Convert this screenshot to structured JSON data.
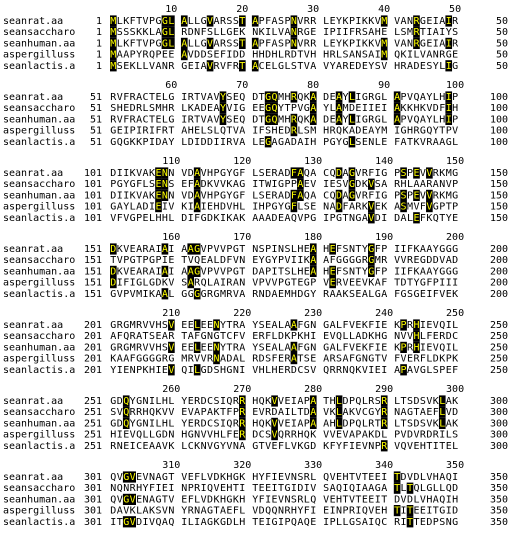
{
  "blocks": [
    {
      "ruler": [
        10,
        20,
        30,
        40,
        50
      ],
      "rows": [
        {
          "name": "seanrat.aa",
          "start": 1,
          "sequence": "MLKFTVPGGL ALLGVARSST APFASPNVRR LEYKPIKKVM VANRGEIAIR",
          "end": 50
        },
        {
          "name": "seansaccharo",
          "start": 1,
          "sequence": "MSSSKKLAGL RDNFSLLGEK NKILVANRGE IPIIFRSAHE LSMRTIAIYS",
          "end": 50
        },
        {
          "name": "seanhuman.aa",
          "start": 1,
          "sequence": "MLKFTVPGGL ALLGVARSST APFASPNVRR LEYKPIKKVM VANRGEIAIR",
          "end": 50
        },
        {
          "name": "aspergilluss",
          "start": 1,
          "sequence": "MAAPYRQPEE AVDDSEFIDD HHDHLRDTVH HRLSANSAIM QKILVANRGE",
          "end": 50
        },
        {
          "name": "seanlactis.a",
          "start": 1,
          "sequence": "MSEKLLVANR GEIAVRVFRT ACELGLSTVA VYAREDEYSV HRADESYLIG",
          "end": 50
        }
      ]
    },
    {
      "ruler": [
        60,
        70,
        80,
        90,
        100
      ],
      "rows": [
        {
          "name": "seanrat.aa",
          "start": 51,
          "sequence": "RVFRACTELG IRTVAVYSEQ DTGQMHRQKA DEAYLIGRGL APVQAYLHIP",
          "end": 100
        },
        {
          "name": "seansaccharo",
          "start": 51,
          "sequence": "SHEDRLSMHR LKADEAYVIG EEGQYTPVGA YLAMDEIIEI AKKHKVDFIH",
          "end": 100
        },
        {
          "name": "seanhuman.aa",
          "start": 51,
          "sequence": "RVFRACTELG IRTVAVYSEQ DTGQMHRQKA DEAYLIGRGL APVQAYLHIP",
          "end": 100
        },
        {
          "name": "aspergilluss",
          "start": 51,
          "sequence": "GEIPIRIFRT AHELSLQTVA IFSHEDRLSM HRQKADEAYM IGHRGQYTPV",
          "end": 100
        },
        {
          "name": "seanlactis.a",
          "start": 51,
          "sequence": "GQGKKPIDAY LDIDDIIRVA LEGAGADAIH PGYGLSENLE FATKVRAAGL",
          "end": 100
        }
      ]
    },
    {
      "ruler": [
        110,
        120,
        130,
        140,
        150
      ],
      "rows": [
        {
          "name": "seanrat.aa",
          "start": 101,
          "sequence": "DIIKVAKENN VDAVHPGYGF LSERADFAQA CQDAGVRFIG PSPEVVRKMG",
          "end": 150
        },
        {
          "name": "seansaccharo",
          "start": 101,
          "sequence": "PGYGFLSENS EFADKVVKAG ITWIGPPAEV IESVGDKVSA RHLAARANVP",
          "end": 150
        },
        {
          "name": "seanhuman.aa",
          "start": 101,
          "sequence": "DIIKVAKENN VDAVHPGYGF LSERADFAQA CQDAGVRFIG PSPEVVRKMG",
          "end": 150
        },
        {
          "name": "aspergilluss",
          "start": 101,
          "sequence": "GAYLADIEIV KIAIEHDVHL IHPGYGFLSE NADFARKVEK ASMVFVGPTP",
          "end": 150
        },
        {
          "name": "seanlactis.a",
          "start": 101,
          "sequence": "VFVGPELHHL DIFGDKIKAK AAADEAQVPG IPGTNGAVDI DALEFKQTYE",
          "end": 150
        }
      ]
    },
    {
      "ruler": [
        160,
        170,
        180,
        190,
        200
      ],
      "rows": [
        {
          "name": "seanrat.aa",
          "start": 151,
          "sequence": "DKVEARAIAI AAGVPVVPGT NSPINSLHEA HEFSNTYGFP IIFKAAYGGG",
          "end": 200
        },
        {
          "name": "seansaccharo",
          "start": 151,
          "sequence": "TVPGTPGPIE TVQEALDFVN EYGYPVIIKA AFGGGGRGMR VVREGDDVAD",
          "end": 200
        },
        {
          "name": "seanhuman.aa",
          "start": 151,
          "sequence": "DKVEARAIAI AAGVPVVPGT DAPITSLHEA HEFSNTYGFP IIFKAAYGGG",
          "end": 200
        },
        {
          "name": "aspergilluss",
          "start": 151,
          "sequence": "DIFIGLGDKV SARQLAIRAN VPVVPGTEGP VERVEEVKAF TDTYGFPIII",
          "end": 200
        },
        {
          "name": "seanlactis.a",
          "start": 151,
          "sequence": "GVPVMIKAAL GGGGRGMRVA RNDAEMHDGY RAAKSEALGA FGSGEIFVEK",
          "end": 200
        }
      ]
    },
    {
      "ruler": [
        210,
        220,
        230,
        240,
        250
      ],
      "rows": [
        {
          "name": "seanrat.aa",
          "start": 201,
          "sequence": "GRGMRVVHSV EELEENYTRA YSEALAAFGN GALFVEKFIE KPRHIEVQIL",
          "end": 250
        },
        {
          "name": "seansaccharo",
          "start": 201,
          "sequence": "AFQRATSEAR TAFGNGTCFV ERFLDKPKHI EVQLLADKHG NVVHLFERDC",
          "end": 250
        },
        {
          "name": "seanhuman.aa",
          "start": 201,
          "sequence": "GRGMRVVHSV EELEENYTRA YSEALAAFGN GALFVEKFIE KPRHIEVQIL",
          "end": 250
        },
        {
          "name": "aspergilluss",
          "start": 201,
          "sequence": "KAAFGGGGRG MRVVRNADAL RDSFERATSE ARSAFGNGTV FVERFLDKPK",
          "end": 250
        },
        {
          "name": "seanlactis.a",
          "start": 201,
          "sequence": "YIENPKHIEV QILGDSHGNI VHLHERDCSV QRRNQKVIEI APAVGLSPEF",
          "end": 250
        }
      ]
    },
    {
      "ruler": [
        260,
        270,
        280,
        290,
        300
      ],
      "rows": [
        {
          "name": "seanrat.aa",
          "start": 251,
          "sequence": "GDQYGNILHL YERDCSIQRR HQKVVEIAPA THLDPQLRSR LTSDSVKLAK",
          "end": 300
        },
        {
          "name": "seansaccharo",
          "start": 251,
          "sequence": "SVQRRHQKVV EVAPAKTFPR EVRDAILTDA VKLAKVCGYR NAGTAEFLVD",
          "end": 300
        },
        {
          "name": "seanhuman.aa",
          "start": 251,
          "sequence": "GDQYGNILHL YERDCSIQRR HQKVVEIAPA AHLDPQLRTR LTSDSVKLAK",
          "end": 300
        },
        {
          "name": "aspergilluss",
          "start": 251,
          "sequence": "HIEVQLLGDN HGNVVHLFER DCSVQRRHQK VVEVAPAKDL PVDVRDRILS",
          "end": 300
        },
        {
          "name": "seanlactis.a",
          "start": 251,
          "sequence": "RNEICEAAVK LCKNVGYVNA GTVEFLVKGD KFYFIEVNPR VQVEHTITEL",
          "end": 300
        }
      ]
    },
    {
      "ruler": [
        310,
        320,
        330,
        340,
        350
      ],
      "rows": [
        {
          "name": "seanrat.aa",
          "start": 301,
          "sequence": "QVGVEVNAGT VEFLVDKHGK HYFIEVNSRL QVEHTVTEEI TDVDLVHAQI",
          "end": 350
        },
        {
          "name": "seansaccharo",
          "start": 301,
          "sequence": "NQNRHYFIEI NPRIQVEHTI TEEITGIDIV SAQIQIAAGA TLTQLGLLQD",
          "end": 350
        },
        {
          "name": "seanhuman.aa",
          "start": 301,
          "sequence": "QVGVENAGTV EFLVDKHGKH YFIEVNSRLQ VEHTVTEEIT DVDLVHAQIH",
          "end": 350
        },
        {
          "name": "aspergilluss",
          "start": 301,
          "sequence": "DAVKLAKSVN YRNAGTAEFL VDQQNRHYFI EINPRIQVEH TITEEITGID",
          "end": 350
        },
        {
          "name": "seanlactis.a",
          "start": 301,
          "sequence": "ITGVDIVQAQ ILIAGKGDLH TEIGIPQAQE IPLLGSAIQC RITTEDPSNG",
          "end": 350
        }
      ]
    }
  ]
}
